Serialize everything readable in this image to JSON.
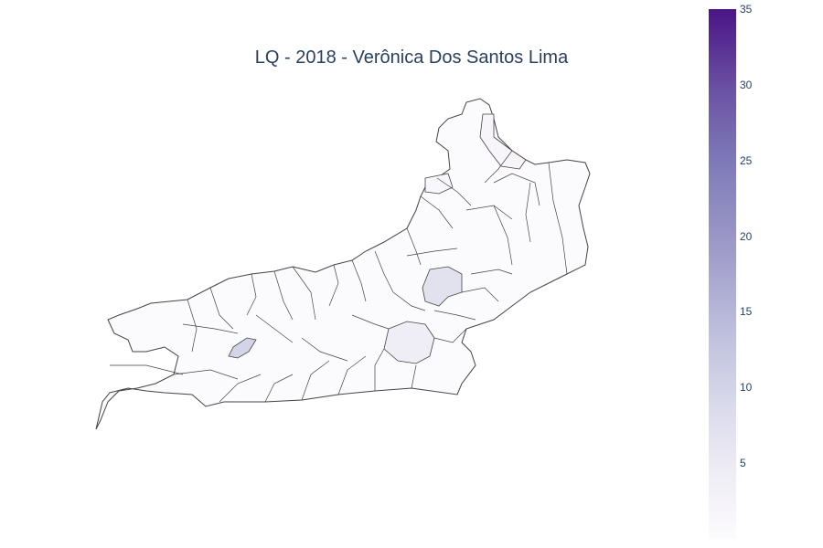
{
  "title": "LQ - 2018 - Verônica Dos Santos Lima",
  "colorbar": {
    "min": 0,
    "max": 35,
    "ticks": [
      35,
      30,
      25,
      20,
      15,
      10,
      5
    ],
    "colors": [
      "#fcfbfd",
      "#efedf5",
      "#dadaeb",
      "#bcbddc",
      "#9e9ac8",
      "#807dba",
      "#6a51a3",
      "#4a1486"
    ]
  },
  "map": {
    "region": "Rio de Janeiro state municipalities",
    "base_value": 0.3,
    "highlights": [
      {
        "id": "northeast-strip",
        "value": 2
      },
      {
        "id": "north-small",
        "value": 1.5
      },
      {
        "id": "central-east",
        "value": 8
      },
      {
        "id": "central-large",
        "value": 5
      },
      {
        "id": "southwest-small",
        "value": 11
      }
    ],
    "border_color": "#444444"
  }
}
